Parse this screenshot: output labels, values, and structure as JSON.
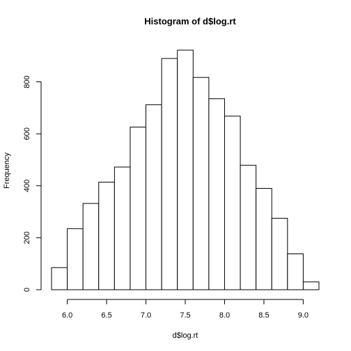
{
  "chart_data": {
    "type": "bar",
    "title": "Histogram of d$log.rt",
    "xlabel": "d$log.rt",
    "ylabel": "Frequency",
    "bin_edges": [
      5.8,
      6.0,
      6.2,
      6.4,
      6.6,
      6.8,
      7.0,
      7.2,
      7.4,
      7.6,
      7.8,
      8.0,
      8.2,
      8.4,
      8.6,
      8.8,
      9.0,
      9.2
    ],
    "values": [
      85,
      235,
      332,
      414,
      472,
      626,
      712,
      890,
      922,
      817,
      735,
      668,
      479,
      390,
      275,
      138,
      30
    ],
    "xlim": [
      5.8,
      9.2
    ],
    "ylim": [
      0,
      922
    ],
    "x_ticks": [
      6.0,
      6.5,
      7.0,
      7.5,
      8.0,
      8.5,
      9.0
    ],
    "x_tick_labels": [
      "6.0",
      "6.5",
      "7.0",
      "7.5",
      "8.0",
      "8.5",
      "9.0"
    ],
    "y_ticks": [
      0,
      200,
      400,
      600,
      800
    ],
    "y_tick_labels": [
      "0",
      "200",
      "400",
      "600",
      "800"
    ],
    "grid": false,
    "colors": {
      "bar_fill": "#ffffff",
      "bar_stroke": "#000000"
    }
  }
}
